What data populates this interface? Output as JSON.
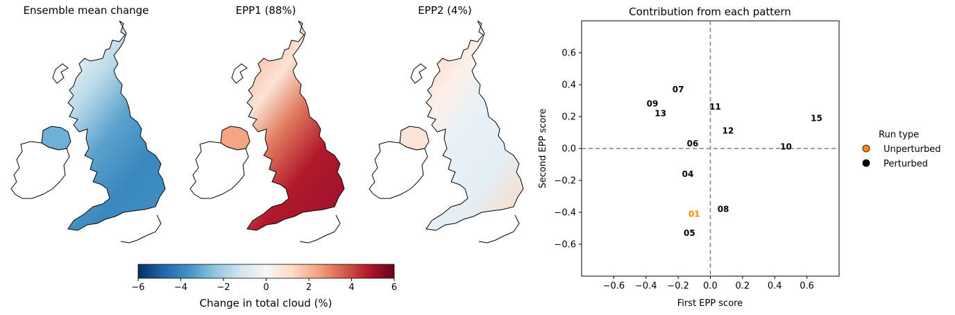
{
  "maps": [
    {
      "title": "Ensemble mean change",
      "palette": "blue"
    },
    {
      "title": "EPP1 (88%)",
      "palette": "red"
    },
    {
      "title": "EPP2 (4%)",
      "palette": "mixed"
    }
  ],
  "colorbar": {
    "label": "Change in total cloud (%)",
    "range": [
      -6,
      6
    ],
    "ticks": [
      -6,
      -4,
      -2,
      0,
      2,
      4,
      6
    ],
    "colormap": "RdBu_r",
    "colors": [
      "#053061",
      "#2166ac",
      "#4393c3",
      "#92c5de",
      "#d1e5f0",
      "#f7f7f7",
      "#fddbc7",
      "#f4a582",
      "#d6604d",
      "#b2182b",
      "#67001f"
    ]
  },
  "chart_data": {
    "type": "scatter",
    "title": "Contribution from each pattern",
    "xlabel": "First EPP score",
    "ylabel": "Second EPP score",
    "xlim": [
      -0.8,
      0.8
    ],
    "ylim": [
      -0.8,
      0.8
    ],
    "xticks": [
      -0.6,
      -0.4,
      -0.2,
      0.0,
      0.2,
      0.4,
      0.6
    ],
    "yticks": [
      -0.6,
      -0.4,
      -0.2,
      0.0,
      0.2,
      0.4,
      0.6
    ],
    "xtick_labels": [
      "−0.6",
      "−0.4",
      "−0.2",
      "0.0",
      "0.2",
      "0.4",
      "0.6"
    ],
    "ytick_labels": [
      "−0.6",
      "−0.4",
      "−0.2",
      "0.0",
      "0.2",
      "0.4",
      "0.6"
    ],
    "grid": false,
    "reference_lines": {
      "x": 0,
      "y": 0,
      "style": "dashed",
      "color": "#808080"
    },
    "legend": {
      "title": "Run type",
      "placement": "outside-right",
      "entries": [
        {
          "label": "Unperturbed",
          "color": "#ff8c00"
        },
        {
          "label": "Perturbed",
          "color": "#000000"
        }
      ]
    },
    "points": [
      {
        "label": "01",
        "x": -0.1,
        "y": -0.41,
        "type": "Unperturbed"
      },
      {
        "label": "04",
        "x": -0.14,
        "y": -0.16,
        "type": "Perturbed"
      },
      {
        "label": "05",
        "x": -0.13,
        "y": -0.53,
        "type": "Perturbed"
      },
      {
        "label": "06",
        "x": -0.11,
        "y": 0.03,
        "type": "Perturbed"
      },
      {
        "label": "07",
        "x": -0.2,
        "y": 0.37,
        "type": "Perturbed"
      },
      {
        "label": "08",
        "x": 0.08,
        "y": -0.38,
        "type": "Perturbed"
      },
      {
        "label": "09",
        "x": -0.36,
        "y": 0.28,
        "type": "Perturbed"
      },
      {
        "label": "10",
        "x": 0.47,
        "y": 0.01,
        "type": "Perturbed"
      },
      {
        "label": "11",
        "x": 0.03,
        "y": 0.26,
        "type": "Perturbed"
      },
      {
        "label": "12",
        "x": 0.11,
        "y": 0.11,
        "type": "Perturbed"
      },
      {
        "label": "13",
        "x": -0.31,
        "y": 0.22,
        "type": "Perturbed"
      },
      {
        "label": "15",
        "x": 0.66,
        "y": 0.19,
        "type": "Perturbed"
      }
    ]
  }
}
